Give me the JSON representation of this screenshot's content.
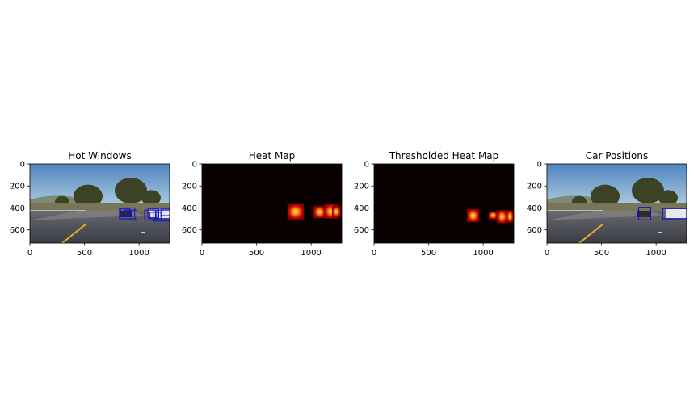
{
  "chart_data": [
    {
      "type": "image",
      "title": "Hot Windows",
      "content": "road-photo",
      "x_ticks": [
        "0",
        "500",
        "1000"
      ],
      "y_ticks": [
        "0",
        "200",
        "400",
        "600"
      ],
      "box_color": "#1010c8"
    },
    {
      "type": "heatmap",
      "title": "Heat Map",
      "content": "heat",
      "x_ticks": [
        "0",
        "500",
        "1000"
      ],
      "y_ticks": [
        "0",
        "200",
        "400",
        "600"
      ]
    },
    {
      "type": "heatmap",
      "title": "Thresholded Heat Map",
      "content": "heat-thresholded",
      "x_ticks": [
        "0",
        "500",
        "1000"
      ],
      "y_ticks": [
        "0",
        "200",
        "400",
        "600"
      ]
    },
    {
      "type": "image",
      "title": "Car Positions",
      "content": "road-photo",
      "x_ticks": [
        "0",
        "500",
        "1000"
      ],
      "y_ticks": [
        "0",
        "200",
        "400",
        "600"
      ],
      "box_color": "#1010c8"
    }
  ],
  "colors": {
    "heat_background": "#0b0000",
    "heat_low": "#8b0000",
    "heat_mid": "#e01010",
    "heat_high": "#ff8c00",
    "heat_peak": "#ffff40",
    "sky": "#6e9cc8",
    "road": "#4c4e56"
  }
}
